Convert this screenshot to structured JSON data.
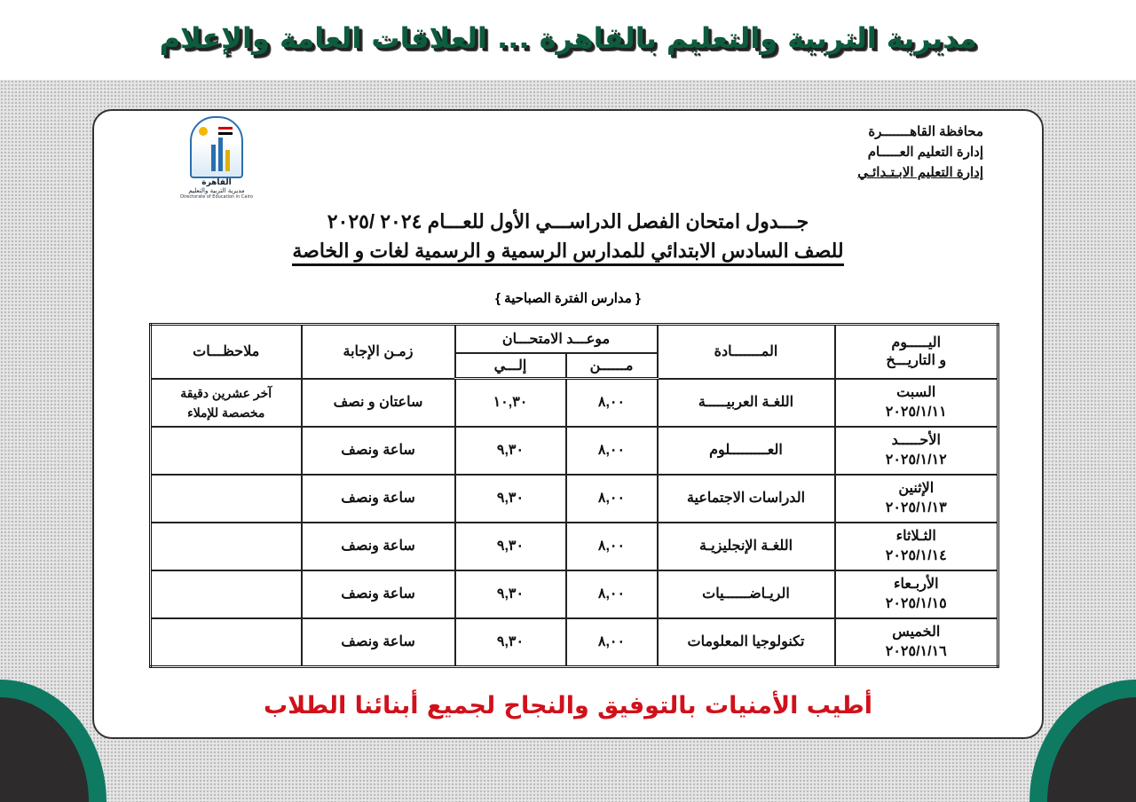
{
  "banner": "مديرية التربية والتعليم بالقاهرة ... العلاقات العامة والإعلام",
  "org": {
    "line1": "محافظة القاهـــــــرة",
    "line2": "إدارة التعليم العـــــام",
    "line3": "إدارة التعليم الابـتـدائـي"
  },
  "logo": {
    "name": "القاهرة",
    "subtitle": "مديرية التربية والتعليم",
    "english": "Directorate of Education in Cairo"
  },
  "title1": "جـــدول امتحان الفصل الدراســـي الأول للعـــام ٢٠٢٤ /٢٠٢٥",
  "title2": "للصف السادس الابتدائي للمدارس الرسمية و الرسمية لغات و الخاصة",
  "period": "{ مدارس الفترة الصباحية }",
  "table": {
    "headers": {
      "day": "اليـــــوم",
      "date": "و التاريـــخ",
      "subject": "المـــــــادة",
      "exam_time": "موعـــد الامتحـــان",
      "from": "مــــــن",
      "to": "إلـــي",
      "duration": "زمـن الإجابة",
      "notes": "ملاحظـــات"
    },
    "rows": [
      {
        "day": "السبت",
        "date": "٢٠٢٥/١/١١",
        "subject": "اللغـة العربيـــــة",
        "from": "٨,٠٠",
        "to": "١٠,٣٠",
        "duration": "ساعتان و نصف",
        "notes1": "آخر عشرين دقيقة",
        "notes2": "مخصصة للإملاء"
      },
      {
        "day": "الأحـــــد",
        "date": "٢٠٢٥/١/١٢",
        "subject": "العـــــــــلوم",
        "from": "٨,٠٠",
        "to": "٩,٣٠",
        "duration": "ساعة ونصف",
        "notes1": "",
        "notes2": ""
      },
      {
        "day": "الإثنين",
        "date": "٢٠٢٥/١/١٣",
        "subject": "الدراسات الاجتماعية",
        "from": "٨,٠٠",
        "to": "٩,٣٠",
        "duration": "ساعة ونصف",
        "notes1": "",
        "notes2": ""
      },
      {
        "day": "الثـلاثاء",
        "date": "٢٠٢٥/١/١٤",
        "subject": "اللغـة الإنجليزيـة",
        "from": "٨,٠٠",
        "to": "٩,٣٠",
        "duration": "ساعة ونصف",
        "notes1": "",
        "notes2": ""
      },
      {
        "day": "الأربـعاء",
        "date": "٢٠٢٥/١/١٥",
        "subject": "الريـاضــــــيات",
        "from": "٨,٠٠",
        "to": "٩,٣٠",
        "duration": "ساعة ونصف",
        "notes1": "",
        "notes2": ""
      },
      {
        "day": "الخميس",
        "date": "٢٠٢٥/١/١٦",
        "subject": "تكنولوجيا المعلومات",
        "from": "٨,٠٠",
        "to": "٩,٣٠",
        "duration": "ساعة ونصف",
        "notes1": "",
        "notes2": ""
      }
    ]
  },
  "footer": "أطيب الأمنيات بالتوفيق والنجاح لجميع أبنائنا الطلاب",
  "colors": {
    "banner": "#0d5c3e",
    "footer": "#d0111b",
    "accent_green": "#0f7a62"
  }
}
